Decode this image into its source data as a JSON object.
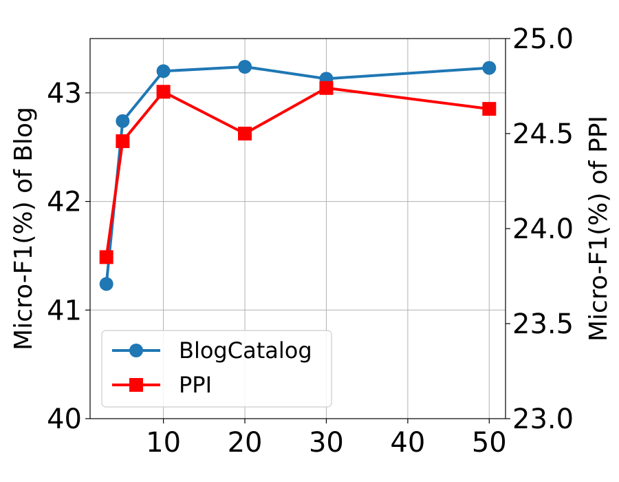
{
  "chart_data": {
    "type": "line",
    "xlabel": "",
    "ylabel_left": "Micro-F1(%) of Blog",
    "ylabel_right": "Micro-F1(%) of PPI",
    "xlim": [
      1,
      52
    ],
    "ylim_left": [
      40,
      43.5
    ],
    "ylim_right": [
      23.0,
      25.0
    ],
    "x_ticks": [
      10,
      20,
      30,
      40,
      50
    ],
    "y_ticks_left": [
      40,
      41,
      42,
      43
    ],
    "y_ticks_right": [
      "23.0",
      "23.5",
      "24.0",
      "24.5",
      "25.0"
    ],
    "grid": true,
    "legend_position": "lower-left",
    "series": [
      {
        "name": "BlogCatalog",
        "axis": "left",
        "color": "#1f77b4",
        "marker": "circle",
        "x": [
          3,
          5,
          10,
          20,
          30,
          50
        ],
        "values": [
          41.24,
          42.74,
          43.2,
          43.24,
          43.13,
          43.23
        ]
      },
      {
        "name": "PPI",
        "axis": "right",
        "color": "#ff0000",
        "marker": "square",
        "x": [
          3,
          5,
          10,
          20,
          30,
          50
        ],
        "values": [
          23.85,
          24.46,
          24.72,
          24.5,
          24.74,
          24.63
        ]
      }
    ]
  }
}
